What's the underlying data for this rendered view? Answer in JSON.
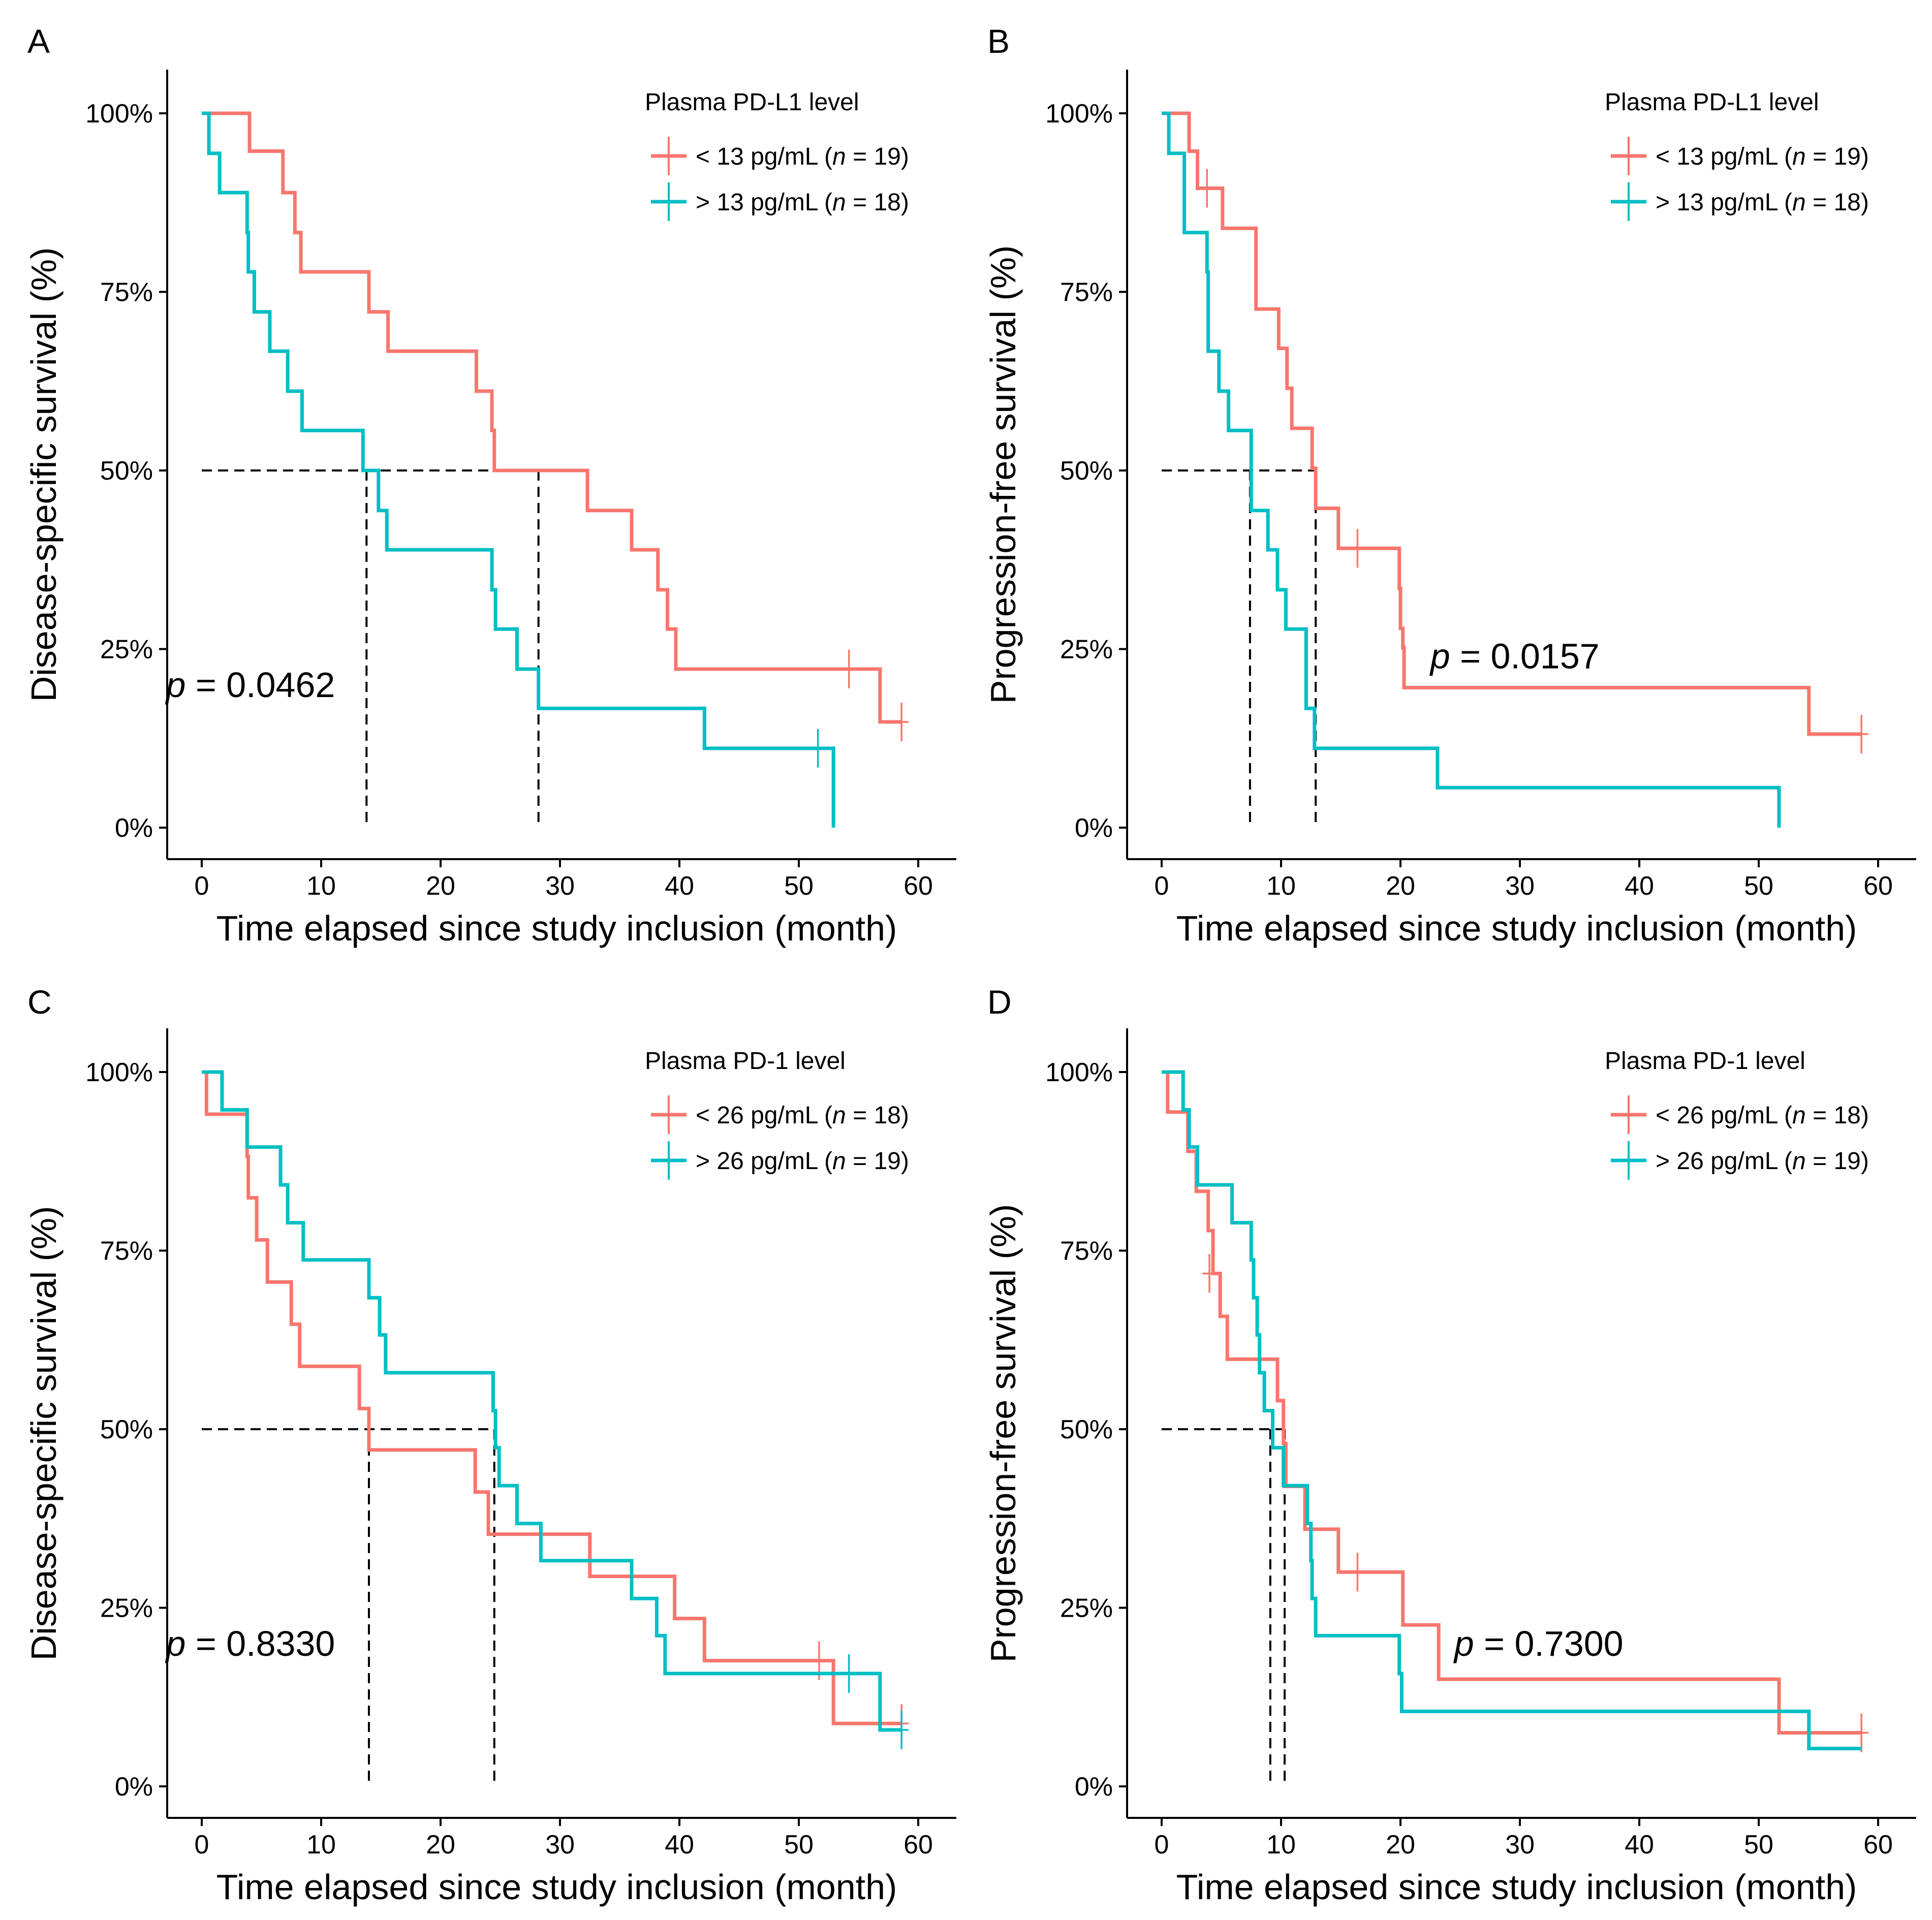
{
  "colors": {
    "low": "#F8766D",
    "high": "#00BFC4",
    "axis": "#000000"
  },
  "chart_data": [
    {
      "panel": "A",
      "type": "line",
      "subtype": "kaplan-meier",
      "ylabel": "Disease-specific survival (%)",
      "xlabel": "Time elapsed since study inclusion (month)",
      "xlim": [
        0,
        60
      ],
      "xticks": [
        "0",
        "10",
        "20",
        "30",
        "40",
        "50",
        "60"
      ],
      "ylim": [
        0,
        100
      ],
      "yticks": [
        "0%",
        "25%",
        "50%",
        "75%",
        "100%"
      ],
      "legend": {
        "title": "Plasma PD-L1 level",
        "position": "top-right",
        "entries": [
          {
            "key": "low",
            "label": "< 13 pg/mL (",
            "n_label": "n",
            "count_label": " = 19)"
          },
          {
            "key": "high",
            "label": "> 13 pg/mL (",
            "n_label": "n",
            "count_label": " = 18)"
          }
        ]
      },
      "p_label": "p",
      "p_value": " = 0.0462",
      "p_anchor": {
        "x": -3,
        "y": 20
      },
      "medians": [
        13.8,
        28.2
      ],
      "series": [
        {
          "key": "low",
          "name": "< 13 pg/mL (n = 19)",
          "steps": [
            [
              0.5,
              100
            ],
            [
              4,
              94.7
            ],
            [
              6.8,
              88.9
            ],
            [
              7.8,
              83.3
            ],
            [
              8.3,
              77.8
            ],
            [
              14,
              72.2
            ],
            [
              15.6,
              66.7
            ],
            [
              23,
              61.1
            ],
            [
              24.3,
              55.6
            ],
            [
              24.5,
              50
            ],
            [
              32.3,
              44.4
            ],
            [
              36,
              38.9
            ],
            [
              38.2,
              33.3
            ],
            [
              39,
              27.8
            ],
            [
              39.7,
              22.2
            ],
            [
              56.8,
              14.8
            ]
          ],
          "end": 58.6,
          "censors": [
            [
              54.2,
              22.2
            ],
            [
              58.6,
              14.8
            ]
          ]
        },
        {
          "key": "high",
          "name": "> 13 pg/mL (n = 18)",
          "steps": [
            [
              0.3,
              100
            ],
            [
              0.6,
              94.4
            ],
            [
              1.5,
              88.9
            ],
            [
              3.8,
              83.3
            ],
            [
              3.9,
              77.8
            ],
            [
              4.4,
              72.2
            ],
            [
              5.7,
              66.7
            ],
            [
              7.2,
              61.1
            ],
            [
              8.4,
              55.6
            ],
            [
              13.5,
              50
            ],
            [
              14.8,
              44.4
            ],
            [
              15.5,
              38.9
            ],
            [
              24.3,
              33.3
            ],
            [
              24.6,
              27.8
            ],
            [
              26.4,
              22.2
            ],
            [
              28.2,
              16.7
            ],
            [
              42.1,
              11.1
            ],
            [
              52.9,
              0
            ]
          ],
          "end": 52.9,
          "censors": [
            [
              51.6,
              11.1
            ]
          ]
        }
      ]
    },
    {
      "panel": "B",
      "type": "line",
      "subtype": "kaplan-meier",
      "ylabel": "Progression-free survival (%)",
      "xlabel": "Time elapsed since study inclusion (month)",
      "xlim": [
        0,
        60
      ],
      "xticks": [
        "0",
        "10",
        "20",
        "30",
        "40",
        "50",
        "60"
      ],
      "ylim": [
        0,
        100
      ],
      "yticks": [
        "0%",
        "25%",
        "50%",
        "75%",
        "100%"
      ],
      "legend": {
        "title": "Plasma PD-L1 level",
        "position": "top-right",
        "entries": [
          {
            "key": "low",
            "label": "< 13 pg/mL (",
            "n_label": "n",
            "count_label": " = 19)"
          },
          {
            "key": "high",
            "label": "> 13 pg/mL (",
            "n_label": "n",
            "count_label": " = 18)"
          }
        ]
      },
      "p_label": "p",
      "p_value": " = 0.0157",
      "p_anchor": {
        "x": 22.5,
        "y": 24
      },
      "medians": [
        7.4,
        12.9
      ],
      "series": [
        {
          "key": "low",
          "name": "< 13 pg/mL (n = 19)",
          "steps": [
            [
              0.6,
              100
            ],
            [
              2.3,
              94.7
            ],
            [
              3,
              89.5
            ],
            [
              5.1,
              83.9
            ],
            [
              7.9,
              72.6
            ],
            [
              9.8,
              67.1
            ],
            [
              10.5,
              61.5
            ],
            [
              10.9,
              55.9
            ],
            [
              12.6,
              50.3
            ],
            [
              12.9,
              44.7
            ],
            [
              14.8,
              39.1
            ],
            [
              19.9,
              33.5
            ],
            [
              20,
              27.9
            ],
            [
              20.2,
              25.2
            ],
            [
              20.3,
              19.6
            ],
            [
              54.2,
              13.1
            ]
          ],
          "end": 58.6,
          "censors": [
            [
              3.8,
              89.5
            ],
            [
              16.4,
              39.1
            ],
            [
              58.6,
              13.1
            ]
          ]
        },
        {
          "key": "high",
          "name": "> 13 pg/mL (n = 18)",
          "steps": [
            [
              0.3,
              100
            ],
            [
              0.6,
              94.4
            ],
            [
              1.9,
              83.3
            ],
            [
              3.8,
              77.8
            ],
            [
              3.9,
              66.7
            ],
            [
              4.8,
              61.1
            ],
            [
              5.6,
              55.6
            ],
            [
              7.5,
              44.4
            ],
            [
              8.9,
              38.9
            ],
            [
              9.7,
              33.3
            ],
            [
              10.4,
              27.8
            ],
            [
              12.1,
              16.7
            ],
            [
              12.8,
              11.1
            ],
            [
              23.1,
              5.6
            ],
            [
              51.7,
              0
            ]
          ],
          "end": 51.7,
          "censors": []
        }
      ]
    },
    {
      "panel": "C",
      "type": "line",
      "subtype": "kaplan-meier",
      "ylabel": "Disease-specific survival (%)",
      "xlabel": "Time elapsed since study inclusion (month)",
      "xlim": [
        0,
        60
      ],
      "xticks": [
        "0",
        "10",
        "20",
        "30",
        "40",
        "50",
        "60"
      ],
      "ylim": [
        0,
        100
      ],
      "yticks": [
        "0%",
        "25%",
        "50%",
        "75%",
        "100%"
      ],
      "legend": {
        "title": "Plasma PD-1 level",
        "position": "top-right",
        "entries": [
          {
            "key": "low",
            "label": "< 26 pg/mL (",
            "n_label": "n",
            "count_label": " = 18)"
          },
          {
            "key": "high",
            "label": "> 26 pg/mL (",
            "n_label": "n",
            "count_label": " = 19)"
          }
        ]
      },
      "p_label": "p",
      "p_value": " = 0.8330",
      "p_anchor": {
        "x": -3,
        "y": 20
      },
      "medians": [
        14,
        24.5
      ],
      "series": [
        {
          "key": "low",
          "name": "< 26 pg/mL (n = 18)",
          "steps": [
            [
              0.2,
              100
            ],
            [
              0.4,
              94.1
            ],
            [
              3.8,
              88.2
            ],
            [
              3.9,
              82.4
            ],
            [
              4.6,
              76.5
            ],
            [
              5.5,
              70.6
            ],
            [
              7.5,
              64.7
            ],
            [
              8.2,
              58.8
            ],
            [
              13.2,
              52.9
            ],
            [
              14,
              47.1
            ],
            [
              22.9,
              41.2
            ],
            [
              24,
              35.3
            ],
            [
              32.5,
              29.4
            ],
            [
              39.6,
              23.5
            ],
            [
              42.1,
              17.6
            ],
            [
              52.9,
              8.8
            ]
          ],
          "end": 58.6,
          "censors": [
            [
              51.7,
              17.6
            ],
            [
              58.6,
              8.8
            ]
          ]
        },
        {
          "key": "high",
          "name": "> 26 pg/mL (n = 19)",
          "steps": [
            [
              0.2,
              100
            ],
            [
              1.7,
              94.7
            ],
            [
              3.8,
              89.5
            ],
            [
              6.6,
              84.2
            ],
            [
              7.2,
              78.9
            ],
            [
              8.5,
              73.7
            ],
            [
              14,
              68.4
            ],
            [
              14.9,
              63.2
            ],
            [
              15.4,
              57.9
            ],
            [
              24.4,
              52.6
            ],
            [
              24.6,
              47.4
            ],
            [
              24.9,
              42.1
            ],
            [
              26.4,
              36.8
            ],
            [
              28.4,
              31.6
            ],
            [
              36,
              26.3
            ],
            [
              38.1,
              21.1
            ],
            [
              38.8,
              15.8
            ],
            [
              56.8,
              7.9
            ]
          ],
          "end": 58.6,
          "censors": [
            [
              54.2,
              15.8
            ],
            [
              58.6,
              7.9
            ]
          ]
        }
      ]
    },
    {
      "panel": "D",
      "type": "line",
      "subtype": "kaplan-meier",
      "ylabel": "Progression-free survival (%)",
      "xlabel": "Time elapsed since study inclusion (month)",
      "xlim": [
        0,
        60
      ],
      "xticks": [
        "0",
        "10",
        "20",
        "30",
        "40",
        "50",
        "60"
      ],
      "ylim": [
        0,
        100
      ],
      "yticks": [
        "0%",
        "25%",
        "50%",
        "75%",
        "100%"
      ],
      "legend": {
        "title": "Plasma PD-1 level",
        "position": "top-right",
        "entries": [
          {
            "key": "low",
            "label": "< 26 pg/mL (",
            "n_label": "n",
            "count_label": " = 18)"
          },
          {
            "key": "high",
            "label": "> 26 pg/mL (",
            "n_label": "n",
            "count_label": " = 19)"
          }
        ]
      },
      "p_label": "p",
      "p_value": " = 0.7300",
      "p_anchor": {
        "x": 24.5,
        "y": 20
      },
      "medians": [
        9.1,
        10.3
      ],
      "series": [
        {
          "key": "low",
          "name": "< 26 pg/mL (n = 18)",
          "steps": [
            [
              0.3,
              100
            ],
            [
              0.5,
              94.4
            ],
            [
              2.2,
              88.9
            ],
            [
              2.9,
              83.3
            ],
            [
              3.9,
              77.8
            ],
            [
              4.3,
              71.8
            ],
            [
              4.9,
              65.8
            ],
            [
              5.5,
              59.8
            ],
            [
              9.7,
              54
            ],
            [
              10.2,
              48
            ],
            [
              10.4,
              42
            ],
            [
              12,
              36
            ],
            [
              14.8,
              30
            ],
            [
              20.2,
              22.6
            ],
            [
              23.2,
              15
            ],
            [
              51.7,
              7.5
            ]
          ],
          "end": 58.6,
          "censors": [
            [
              4,
              71.8
            ],
            [
              16.4,
              30
            ],
            [
              58.6,
              7.5
            ]
          ]
        },
        {
          "key": "high",
          "name": "> 26 pg/mL (n = 19)",
          "steps": [
            [
              0.4,
              100
            ],
            [
              1.8,
              94.7
            ],
            [
              2.3,
              89.5
            ],
            [
              3,
              84.2
            ],
            [
              5.9,
              78.9
            ],
            [
              7.5,
              73.7
            ],
            [
              7.7,
              68.4
            ],
            [
              8,
              63.2
            ],
            [
              8.2,
              57.9
            ],
            [
              8.6,
              52.6
            ],
            [
              9.3,
              47.4
            ],
            [
              10.2,
              42.1
            ],
            [
              12.2,
              36.8
            ],
            [
              12.5,
              31.6
            ],
            [
              12.6,
              26.3
            ],
            [
              12.9,
              21.1
            ],
            [
              19.9,
              15.8
            ],
            [
              20.1,
              10.5
            ],
            [
              54.2,
              5.3
            ]
          ],
          "end": 58.6,
          "censors": []
        }
      ]
    }
  ]
}
